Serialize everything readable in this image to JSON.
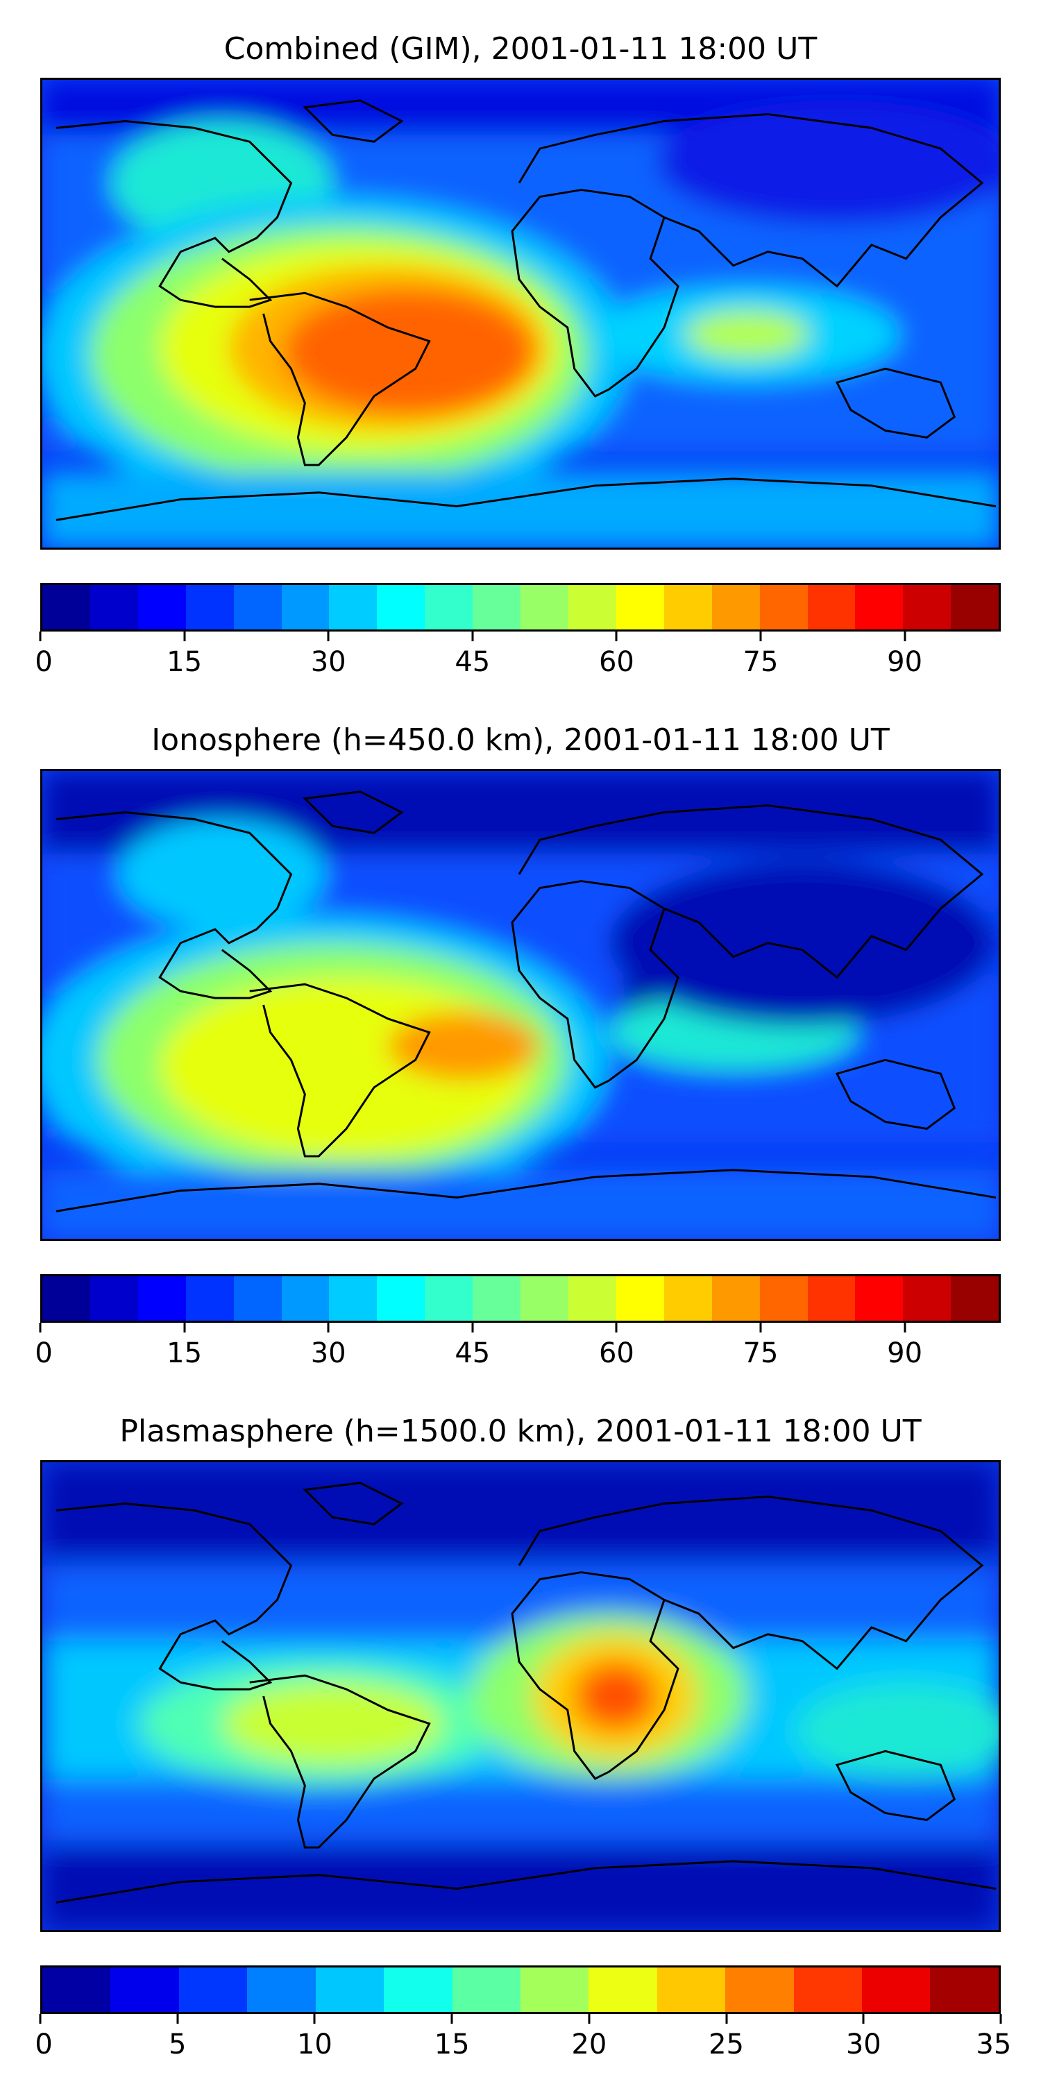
{
  "panels": [
    {
      "title": "Combined (GIM), 2001-01-11 18:00 UT",
      "colorbar": {
        "min": 0,
        "max": 100,
        "levels": 20,
        "ticks": [
          "0",
          "15",
          "30",
          "45",
          "60",
          "75",
          "90"
        ],
        "tick_values": [
          0,
          15,
          30,
          45,
          60,
          75,
          90
        ]
      }
    },
    {
      "title": "Ionosphere  (h=450.0 km), 2001-01-11 18:00 UT",
      "colorbar": {
        "min": 0,
        "max": 100,
        "levels": 20,
        "ticks": [
          "0",
          "15",
          "30",
          "45",
          "60",
          "75",
          "90"
        ],
        "tick_values": [
          0,
          15,
          30,
          45,
          60,
          75,
          90
        ]
      }
    },
    {
      "title": "Plasmasphere (h=1500.0 km), 2001-01-11 18:00 UT",
      "colorbar": {
        "min": 0,
        "max": 35,
        "levels": 14,
        "ticks": [
          "0",
          "5",
          "10",
          "15",
          "20",
          "25",
          "30",
          "35"
        ],
        "tick_values": [
          0,
          5,
          10,
          15,
          20,
          25,
          30,
          35
        ]
      }
    }
  ],
  "colormap": "jet",
  "colors": {
    "coastline": "#000000",
    "background": "#ffffff"
  }
}
